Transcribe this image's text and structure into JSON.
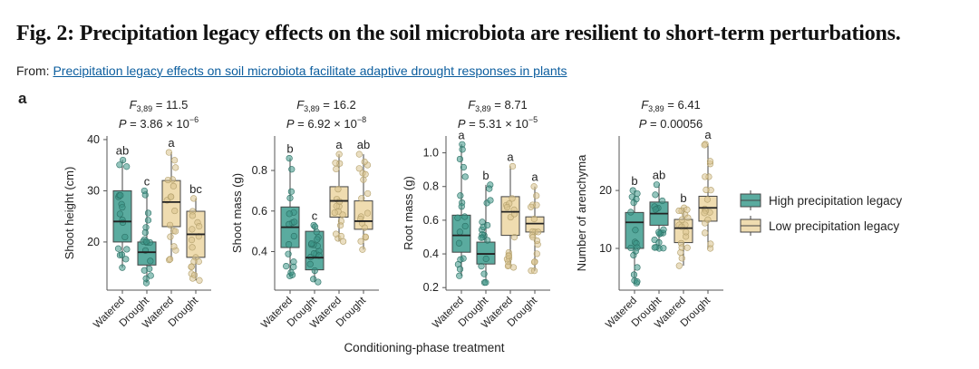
{
  "title": "Fig. 2: Precipitation legacy effects on the soil microbiota are resilient to short-term perturbations.",
  "from_label": "From:",
  "from_link": "Precipitation legacy effects on soil microbiota facilitate adaptive drought responses in plants",
  "panel_label": "a",
  "xlabel": "Conditioning-phase treatment",
  "colors": {
    "high": "#5aab9f",
    "low": "#efdcb0",
    "high_pt": "#3c9686",
    "low_pt": "#d8c38e"
  },
  "chart_data": [
    {
      "type": "box",
      "ylabel": "Shoot height (cm)",
      "stat_f": "F3,89 = 11.5",
      "stat_f_sub": "3,89",
      "stat_f_val": " = 11.5",
      "stat_p": "P = 3.86 × 10",
      "stat_p_exp": "−6",
      "ylim": [
        10.6,
        40.7
      ],
      "yticks": [
        20,
        30,
        40
      ],
      "categories": [
        "Watered",
        "Drought",
        "Watered",
        "Drought"
      ],
      "groups": [
        "high",
        "high",
        "low",
        "low"
      ],
      "letters": [
        "ab",
        "c",
        "a",
        "bc"
      ],
      "boxes": [
        [
          15,
          20,
          24,
          30,
          36
        ],
        [
          12,
          15.5,
          18,
          20,
          30
        ],
        [
          16.5,
          23,
          27.8,
          32,
          37.5
        ],
        [
          12.5,
          17,
          21.5,
          26,
          28.5
        ]
      ]
    },
    {
      "type": "box",
      "ylabel": "Shoot mass (g)",
      "stat_f": "F3,89 = 16.2",
      "stat_f_sub": "3,89",
      "stat_f_val": " = 16.2",
      "stat_p": "P = 6.92 × 10",
      "stat_p_exp": "−8",
      "ylim": [
        0.21,
        0.97
      ],
      "yticks": [
        0.4,
        0.6,
        0.8
      ],
      "categories": [
        "Watered",
        "Drought",
        "Watered",
        "Drought"
      ],
      "groups": [
        "high",
        "high",
        "low",
        "low"
      ],
      "letters": [
        "b",
        "c",
        "a",
        "ab"
      ],
      "boxes": [
        [
          0.28,
          0.42,
          0.52,
          0.62,
          0.86
        ],
        [
          0.25,
          0.31,
          0.37,
          0.5,
          0.53
        ],
        [
          0.45,
          0.57,
          0.65,
          0.72,
          0.88
        ],
        [
          0.41,
          0.51,
          0.55,
          0.65,
          0.88
        ]
      ]
    },
    {
      "type": "box",
      "ylabel": "Root mass (g)",
      "stat_f": "F3,89 = 8.71",
      "stat_f_sub": "3,89",
      "stat_f_val": " = 8.71",
      "stat_p": "P = 5.31 × 10",
      "stat_p_exp": "−5",
      "ylim": [
        0.185,
        1.1
      ],
      "yticks": [
        0.2,
        0.4,
        0.6,
        0.8,
        1.0
      ],
      "categories": [
        "Watered",
        "Drought",
        "Watered",
        "Drought"
      ],
      "groups": [
        "high",
        "high",
        "low",
        "low"
      ],
      "letters": [
        "a",
        "b",
        "a",
        "a"
      ],
      "boxes": [
        [
          0.27,
          0.41,
          0.51,
          0.63,
          1.05
        ],
        [
          0.23,
          0.34,
          0.4,
          0.47,
          0.81
        ],
        [
          0.32,
          0.51,
          0.65,
          0.74,
          0.92
        ],
        [
          0.3,
          0.53,
          0.58,
          0.62,
          0.8
        ]
      ]
    },
    {
      "type": "box",
      "ylabel": "Number of arenchyma",
      "stat_f": "F3,89 = 6.41",
      "stat_f_sub": "3,89",
      "stat_f_val": " = 6.41",
      "stat_p": "P = 0.00056",
      "stat_p_exp": "",
      "ylim": [
        2.8,
        29.4
      ],
      "yticks": [
        10,
        20
      ],
      "categories": [
        "Watered",
        "Drought",
        "Watered",
        "Drought"
      ],
      "groups": [
        "high",
        "high",
        "low",
        "low"
      ],
      "letters": [
        "b",
        "ab",
        "b",
        "a"
      ],
      "boxes": [
        [
          4,
          10,
          14.5,
          16.2,
          20
        ],
        [
          10,
          14,
          16,
          18,
          21
        ],
        [
          7,
          11,
          13.5,
          15,
          17
        ],
        [
          10,
          14.7,
          17,
          19,
          28
        ]
      ]
    }
  ],
  "legend": [
    {
      "key": "high",
      "label": "High precipitation legacy"
    },
    {
      "key": "low",
      "label": "Low precipitation legacy"
    }
  ]
}
